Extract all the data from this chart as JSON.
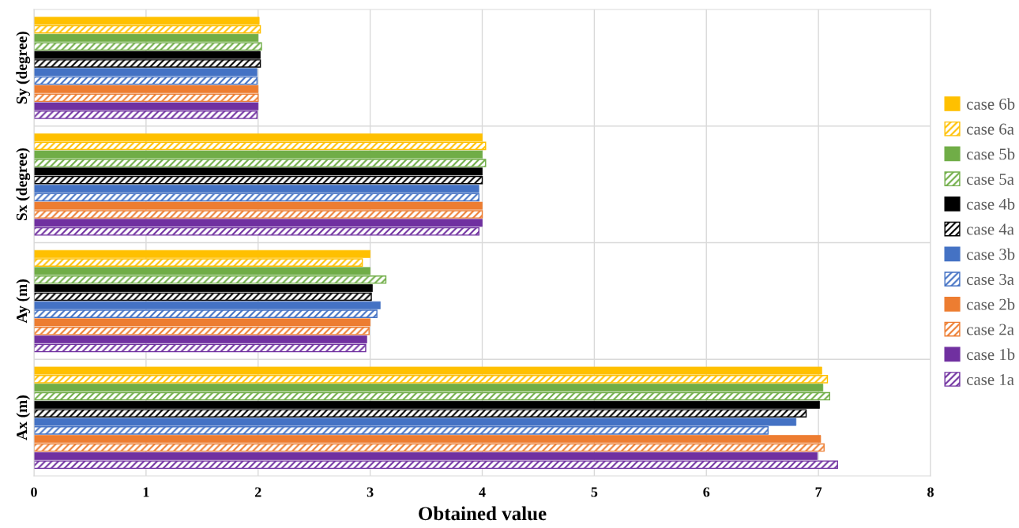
{
  "chart_data": {
    "type": "bar",
    "orientation": "horizontal",
    "xlabel": "Obtained value",
    "categories": [
      "Sy (degree)",
      "Sx (degree)",
      "Ay (m)",
      "Ax (m)"
    ],
    "xlim": [
      0,
      8
    ],
    "xticks": [
      0,
      1,
      2,
      3,
      4,
      5,
      6,
      7,
      8
    ],
    "grid": true,
    "legend": "right",
    "series": [
      {
        "name": "case 6b",
        "color": "#ffc000",
        "values": [
          2.01,
          4.0,
          3.0,
          7.03
        ]
      },
      {
        "name": "case 6a",
        "color": "#ffc000",
        "values": [
          2.02,
          4.03,
          2.93,
          7.08
        ]
      },
      {
        "name": "case 5b",
        "color": "#70ad47",
        "values": [
          2.0,
          4.0,
          3.0,
          7.04
        ]
      },
      {
        "name": "case 5a",
        "color": "#70ad47",
        "values": [
          2.03,
          4.03,
          3.14,
          7.1
        ]
      },
      {
        "name": "case 4b",
        "color": "#000000",
        "values": [
          2.02,
          4.0,
          3.02,
          7.01
        ]
      },
      {
        "name": "case 4a",
        "color": "#000000",
        "values": [
          2.02,
          4.0,
          3.01,
          6.89
        ]
      },
      {
        "name": "case 3b",
        "color": "#4472c4",
        "values": [
          1.99,
          3.97,
          3.09,
          6.8
        ]
      },
      {
        "name": "case 3a",
        "color": "#4472c4",
        "values": [
          1.99,
          3.97,
          3.06,
          6.55
        ]
      },
      {
        "name": "case 2b",
        "color": "#ed7d31",
        "values": [
          2.0,
          4.0,
          3.0,
          7.02
        ]
      },
      {
        "name": "case 2a",
        "color": "#ed7d31",
        "values": [
          2.0,
          4.0,
          2.99,
          7.05
        ]
      },
      {
        "name": "case 1b",
        "color": "#7030a0",
        "values": [
          2.0,
          4.0,
          2.97,
          6.99
        ]
      },
      {
        "name": "case 1a",
        "color": "#7030a0",
        "values": [
          1.99,
          3.97,
          2.96,
          7.17
        ]
      }
    ]
  }
}
